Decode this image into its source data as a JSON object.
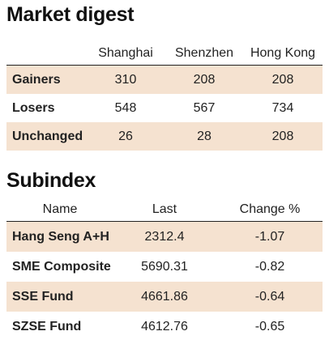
{
  "digest": {
    "title": "Market digest",
    "columns": [
      "Shanghai",
      "Shenzhen",
      "Hong Kong"
    ],
    "rows": [
      {
        "label": "Gainers",
        "values": [
          "310",
          "208",
          "208"
        ]
      },
      {
        "label": "Losers",
        "values": [
          "548",
          "567",
          "734"
        ]
      },
      {
        "label": "Unchanged",
        "values": [
          "26",
          "28",
          "208"
        ]
      }
    ]
  },
  "subindex": {
    "title": "Subindex",
    "columns": [
      "Name",
      "Last",
      "Change %"
    ],
    "rows": [
      {
        "name": "Hang Seng A+H",
        "last": "2312.4",
        "change": "-1.07"
      },
      {
        "name": "SME Composite",
        "last": "5690.31",
        "change": "-0.82"
      },
      {
        "name": "SSE Fund",
        "last": "4661.86",
        "change": "-0.64"
      },
      {
        "name": "SZSE Fund",
        "last": "4612.76",
        "change": "-0.65"
      }
    ]
  },
  "colors": {
    "row_shade": "#f5e2d0",
    "rule": "#222222"
  }
}
